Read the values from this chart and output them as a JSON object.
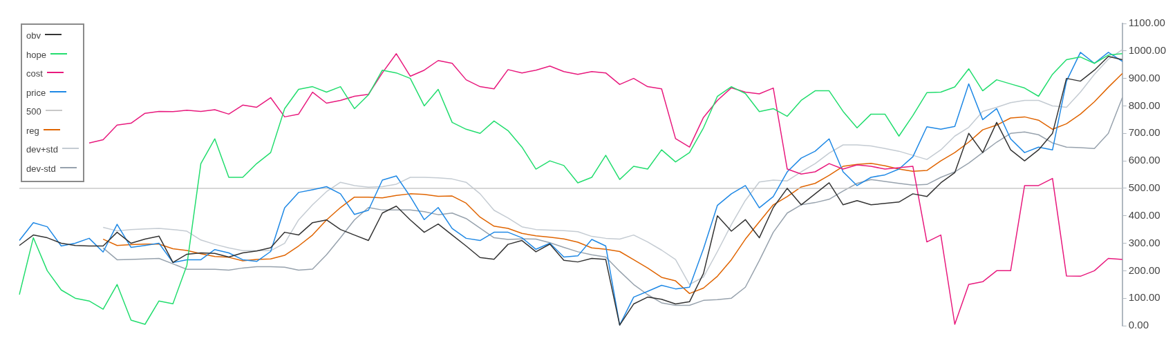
{
  "chart_data": {
    "type": "line",
    "categories": [
      null,
      null,
      null,
      null,
      null,
      null,
      null,
      null,
      null,
      null,
      null,
      null,
      null,
      null,
      null,
      null,
      null,
      null,
      null,
      null,
      null,
      null,
      null,
      null,
      null,
      null,
      null,
      null,
      null,
      null,
      null,
      null,
      null,
      null,
      null,
      null,
      null,
      null,
      null,
      null,
      null,
      null,
      null,
      null,
      null,
      null,
      null,
      null,
      null,
      null,
      null,
      null,
      null,
      null,
      null,
      null,
      null,
      null,
      null,
      null,
      null,
      null,
      null,
      null,
      null,
      null,
      null,
      null,
      null,
      null,
      null,
      null,
      null,
      null,
      null,
      null,
      null,
      null,
      null,
      null
    ],
    "ylim": [
      0,
      1100
    ],
    "yticks": [
      {
        "value": 0,
        "label": "0.00"
      },
      {
        "value": 100,
        "label": "100.00"
      },
      {
        "value": 200,
        "label": "200.00"
      },
      {
        "value": 300,
        "label": "300.00"
      },
      {
        "value": 400,
        "label": "400.00"
      },
      {
        "value": 500,
        "label": "500.00"
      },
      {
        "value": 600,
        "label": "600.00"
      },
      {
        "value": 700,
        "label": "700.00"
      },
      {
        "value": 800,
        "label": "800.00"
      },
      {
        "value": 900,
        "label": "900.00"
      },
      {
        "value": 1000,
        "label": "1000.00"
      },
      {
        "value": 1100,
        "label": "1100.00"
      }
    ],
    "tick_labels": "y",
    "grid": false,
    "legend": "top left",
    "marker": "none",
    "line_style": "solid",
    "series": [
      {
        "name": "obv",
        "color": "#333333",
        "values": [
          292,
          330,
          320,
          300,
          292,
          290,
          290,
          340,
          300,
          315,
          326,
          230,
          260,
          265,
          263,
          250,
          265,
          272,
          284,
          340,
          330,
          375,
          385,
          350,
          330,
          310,
          410,
          435,
          385,
          340,
          370,
          330,
          290,
          248,
          242,
          296,
          310,
          269,
          297,
          238,
          232,
          245,
          241,
          2,
          79,
          104,
          96,
          79,
          87,
          190,
          400,
          344,
          386,
          320,
          430,
          500,
          440,
          480,
          520,
          440,
          455,
          440,
          445,
          450,
          480,
          470,
          520,
          557,
          700,
          630,
          740,
          640,
          600,
          640,
          700,
          900,
          890,
          930,
          980,
          968
        ]
      },
      {
        "name": "hope",
        "color": "#22dd6e",
        "values": [
          113,
          320,
          200,
          130,
          100,
          90,
          60,
          150,
          20,
          5,
          90,
          80,
          220,
          590,
          680,
          540,
          540,
          590,
          630,
          790,
          860,
          870,
          850,
          870,
          790,
          840,
          930,
          920,
          900,
          800,
          860,
          740,
          715,
          700,
          745,
          710,
          650,
          570,
          600,
          583,
          520,
          540,
          620,
          532,
          580,
          570,
          640,
          596,
          630,
          720,
          835,
          870,
          845,
          779,
          790,
          762,
          820,
          855,
          855,
          780,
          720,
          770,
          770,
          690,
          765,
          848,
          850,
          869,
          935,
          855,
          895,
          880,
          865,
          835,
          915,
          968,
          978,
          955,
          985,
          990
        ]
      },
      {
        "name": "cost",
        "color": "#e8197d",
        "values": [
          null,
          null,
          null,
          null,
          null,
          665,
          677,
          730,
          737,
          773,
          780,
          779,
          784,
          780,
          786,
          770,
          803,
          795,
          830,
          760,
          770,
          850,
          810,
          820,
          835,
          842,
          920,
          990,
          908,
          930,
          965,
          955,
          895,
          870,
          862,
          932,
          920,
          930,
          945,
          925,
          915,
          925,
          920,
          878,
          900,
          870,
          862,
          681,
          650,
          758,
          820,
          866,
          850,
          844,
          865,
          570,
          552,
          560,
          590,
          570,
          585,
          580,
          570,
          575,
          580,
          305,
          330,
          5,
          150,
          160,
          200,
          200,
          510,
          510,
          536,
          181,
          180,
          200,
          245,
          241
        ]
      },
      {
        "name": "price",
        "color": "#1e88e5",
        "values": [
          310,
          375,
          360,
          290,
          300,
          318,
          268,
          369,
          285,
          292,
          300,
          230,
          240,
          240,
          277,
          265,
          240,
          234,
          270,
          429,
          485,
          495,
          506,
          480,
          405,
          420,
          530,
          545,
          470,
          386,
          430,
          354,
          318,
          310,
          340,
          340,
          320,
          278,
          300,
          250,
          254,
          314,
          290,
          2,
          104,
          125,
          147,
          134,
          140,
          280,
          438,
          480,
          510,
          429,
          470,
          560,
          610,
          635,
          680,
          560,
          510,
          540,
          549,
          570,
          615,
          724,
          715,
          725,
          880,
          750,
          790,
          680,
          630,
          650,
          640,
          890,
          995,
          955,
          995,
          962
        ]
      },
      {
        "name": "500",
        "color": "#c8c8c8",
        "values": [
          500,
          500,
          500,
          500,
          500,
          500,
          500,
          500,
          500,
          500,
          500,
          500,
          500,
          500,
          500,
          500,
          500,
          500,
          500,
          500,
          500,
          500,
          500,
          500,
          500,
          500,
          500,
          500,
          500,
          500,
          500,
          500,
          500,
          500,
          500,
          500,
          500,
          500,
          500,
          500,
          500,
          500,
          500,
          500,
          500,
          500,
          500,
          500,
          500,
          500,
          500,
          500,
          500,
          500,
          500,
          500,
          500,
          500,
          500,
          500,
          500,
          500,
          500,
          500,
          500,
          500,
          500,
          500,
          500,
          500,
          500,
          500,
          500,
          500,
          500,
          500,
          500,
          500,
          500,
          500
        ]
      },
      {
        "name": "reg",
        "color": "#e06400",
        "values": [
          null,
          null,
          null,
          null,
          null,
          null,
          315,
          292,
          295,
          297,
          297,
          280,
          274,
          262,
          252,
          249,
          236,
          241,
          243,
          256,
          290,
          330,
          385,
          430,
          468,
          468,
          465,
          474,
          480,
          478,
          471,
          472,
          446,
          395,
          362,
          354,
          336,
          327,
          322,
          316,
          304,
          283,
          278,
          270,
          240,
          210,
          176,
          163,
          117,
          137,
          180,
          240,
          315,
          378,
          440,
          470,
          505,
          518,
          547,
          580,
          587,
          591,
          582,
          570,
          562,
          565,
          600,
          630,
          668,
          713,
          730,
          756,
          760,
          748,
          715,
          735,
          770,
          815,
          868,
          918
        ]
      },
      {
        "name": "dev+std",
        "color": "#c4cbd2",
        "values": [
          null,
          null,
          null,
          null,
          null,
          null,
          358,
          345,
          350,
          352,
          354,
          350,
          344,
          312,
          296,
          283,
          273,
          273,
          273,
          300,
          385,
          440,
          488,
          522,
          510,
          504,
          506,
          515,
          540,
          540,
          538,
          534,
          522,
          480,
          420,
          392,
          360,
          350,
          348,
          346,
          342,
          325,
          318,
          315,
          330,
          305,
          275,
          241,
          150,
          177,
          270,
          368,
          456,
          523,
          530,
          527,
          560,
          590,
          628,
          658,
          658,
          654,
          645,
          635,
          620,
          605,
          640,
          690,
          722,
          780,
          795,
          812,
          820,
          820,
          800,
          795,
          850,
          915,
          970,
          1005
        ]
      },
      {
        "name": "dev-std",
        "color": "#97a2ad",
        "values": [
          null,
          null,
          null,
          null,
          null,
          null,
          283,
          240,
          241,
          243,
          245,
          225,
          205,
          205,
          205,
          202,
          210,
          215,
          215,
          213,
          202,
          206,
          258,
          320,
          385,
          430,
          421,
          421,
          421,
          415,
          404,
          410,
          390,
          355,
          320,
          314,
          316,
          315,
          302,
          285,
          269,
          258,
          250,
          198,
          150,
          113,
          83,
          74,
          74,
          92,
          95,
          100,
          140,
          237,
          340,
          410,
          440,
          448,
          460,
          490,
          518,
          532,
          525,
          518,
          512,
          514,
          540,
          560,
          592,
          630,
          668,
          700,
          705,
          695,
          665,
          650,
          648,
          645,
          700,
          830
        ]
      }
    ]
  }
}
